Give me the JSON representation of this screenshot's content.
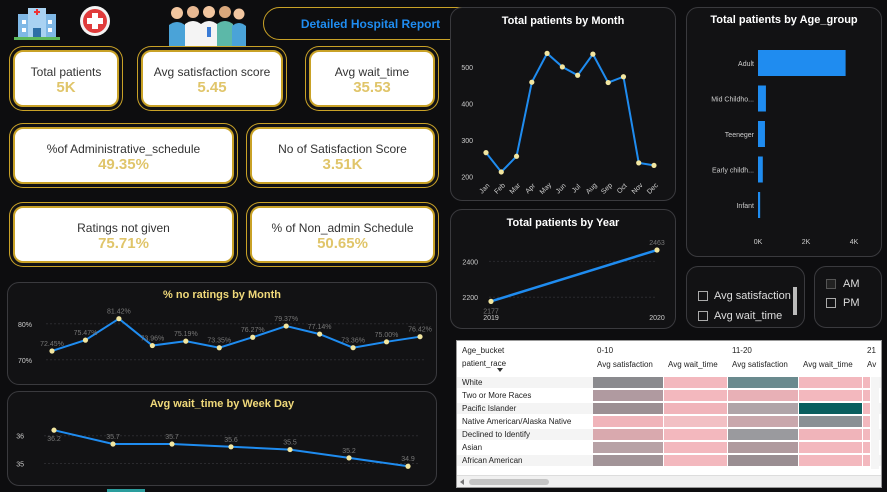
{
  "title": "Detailed Hospital Report",
  "kpis": {
    "total_patients": {
      "label": "Total patients",
      "value": "5K"
    },
    "avg_satisfaction": {
      "label": "Avg satisfaction score",
      "value": "5.45"
    },
    "avg_wait": {
      "label": "Avg wait_time",
      "value": "35.53"
    },
    "admin_schedule": {
      "label": "%of Administrative_schedule",
      "value": "49.35%"
    },
    "num_satisfaction": {
      "label": "No of Satisfaction Score",
      "value": "3.51K"
    },
    "ratings_not_given": {
      "label": "Ratings not given",
      "value": "75.71%"
    },
    "non_admin": {
      "label": "% of Non_admin Schedule",
      "value": "50.65%"
    }
  },
  "slicers": {
    "measure": {
      "opt1": "Avg satisfaction",
      "opt2": "Avg wait_time"
    },
    "ampm": {
      "opt1": "AM",
      "opt2": "PM"
    }
  },
  "colors": {
    "accent": "#1f8cf0",
    "gold": "#c9a227",
    "value": "#e0c56a",
    "title_gold": "#f0d97a"
  },
  "chart_data": [
    {
      "id": "month",
      "type": "line",
      "title": "Total patients by Month",
      "categories": [
        "Jan",
        "Feb",
        "Mar",
        "Apr",
        "May",
        "Jun",
        "Jul",
        "Aug",
        "Sep",
        "Oct",
        "Nov",
        "Dec"
      ],
      "values": [
        265,
        212,
        255,
        458,
        537,
        500,
        477,
        535,
        457,
        473,
        237,
        230
      ],
      "yticks": [
        200,
        300,
        400,
        500
      ],
      "ylim": [
        190,
        560
      ]
    },
    {
      "id": "age",
      "type": "bar",
      "orientation": "horizontal",
      "title": "Total patients by Age_group",
      "categories": [
        "Adult",
        "Mid Childho...",
        "Teeneger",
        "Early childh...",
        "Infant"
      ],
      "values": [
        3650,
        330,
        290,
        200,
        90
      ],
      "xticks": [
        "0K",
        "2K",
        "4K"
      ],
      "xlim": [
        0,
        4000
      ]
    },
    {
      "id": "year",
      "type": "line",
      "title": "Total patients by Year",
      "categories": [
        "2019",
        "2020"
      ],
      "values": [
        2177,
        2463
      ],
      "labels": [
        "2177",
        "2463"
      ],
      "yticks": [
        2200,
        2400
      ],
      "ylim": [
        2140,
        2530
      ]
    },
    {
      "id": "noratings",
      "type": "line",
      "title": "% no ratings by Month",
      "values": [
        72.45,
        75.47,
        81.42,
        73.96,
        75.19,
        73.35,
        76.27,
        79.37,
        77.14,
        73.36,
        75.0,
        76.42
      ],
      "labels": [
        "72.45%",
        "75.47%",
        "81.42%",
        "73.96%",
        "75.19%",
        "73.35%",
        "76.27%",
        "79.37%",
        "77.14%",
        "73.36%",
        "75.00%",
        "76.42%"
      ],
      "yticks": [
        "70%",
        "80%"
      ],
      "ylim": [
        68,
        83
      ]
    },
    {
      "id": "weekday",
      "type": "line",
      "title": "Avg wait_time by Week Day",
      "values": [
        36.2,
        35.7,
        35.7,
        35.6,
        35.5,
        35.2,
        34.9
      ],
      "labels": [
        "36.2",
        "35.7",
        "35.7",
        "35.6",
        "35.5",
        "35.2",
        "34.9"
      ],
      "yticks": [
        "35",
        "36"
      ],
      "ylim": [
        34.8,
        36.35
      ]
    }
  ],
  "matrix": {
    "row_header": "Age_bucket",
    "col_header": "patient_race",
    "groups": [
      "0-10",
      "11-20",
      "21"
    ],
    "columns": [
      "Avg satisfaction",
      "Avg wait_time",
      "Avg satisfaction",
      "Avg wait_time",
      "Av"
    ],
    "rows": [
      "White",
      "Two or More Races",
      "Pacific Islander",
      "Native American/Alaska Native",
      "Declined to Identify",
      "Asian",
      "African American"
    ],
    "cell_colors": [
      [
        "#8a8a8e",
        "#f3b8be",
        "#6a8a8e",
        "#f3b8be",
        "#f3b8be"
      ],
      [
        "#b09aa0",
        "#f3b8be",
        "#e8b0b6",
        "#f3b8be",
        "#f3b8be"
      ],
      [
        "#9c8f93",
        "#f0b4ba",
        "#b0a4a8",
        "#0a5f5f",
        "#f3b8be"
      ],
      [
        "#f0b4ba",
        "#f2c0c4",
        "#c9a7ac",
        "#8a9094",
        "#f3b8be"
      ],
      [
        "#d9a9ae",
        "#f3b8be",
        "#9a9a9e",
        "#f0b4ba",
        "#f3b8be"
      ],
      [
        "#b8a2a6",
        "#f3b8be",
        "#b09a9e",
        "#f3b8be",
        "#f3b8be"
      ],
      [
        "#a29498",
        "#f3b8be",
        "#9a8e92",
        "#f3b8be",
        "#f3b8be"
      ]
    ]
  }
}
